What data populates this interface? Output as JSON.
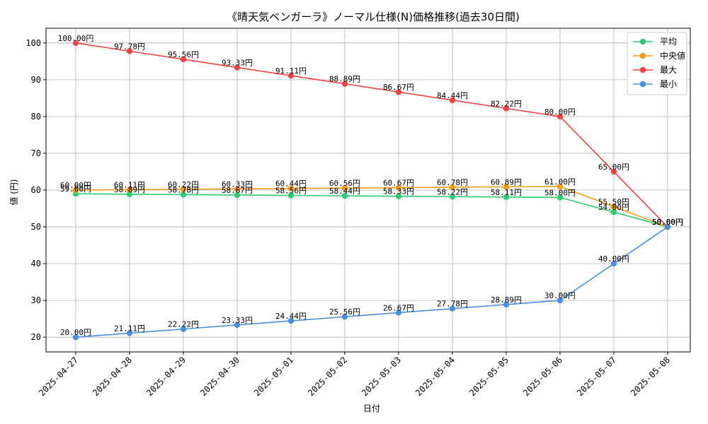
{
  "chart_data": {
    "type": "line",
    "title": "《晴天気ベンガーラ》ノーマル仕様(N)価格推移(過去30日間)",
    "xlabel": "日付",
    "ylabel": "値 (円)",
    "x": [
      "2025-04-27",
      "2025-04-28",
      "2025-04-29",
      "2025-04-30",
      "2025-05-01",
      "2025-05-02",
      "2025-05-03",
      "2025-05-04",
      "2025-05-05",
      "2025-05-06",
      "2025-05-07",
      "2025-05-08"
    ],
    "ylim": [
      16,
      104
    ],
    "yticks": [
      "20",
      "30",
      "40",
      "50",
      "60",
      "70",
      "80",
      "90",
      "100"
    ],
    "grid": true,
    "legend_position": "top-right",
    "series": [
      {
        "name": "平均",
        "color": "#2ecc71",
        "values": [
          59.0,
          58.89,
          58.78,
          58.67,
          58.56,
          58.44,
          58.33,
          58.22,
          58.11,
          58.0,
          54.0,
          50.0
        ],
        "labels": [
          "59.00円",
          "58.89円",
          "58.78円",
          "58.67円",
          "58.56円",
          "58.44円",
          "58.33円",
          "58.22円",
          "58.11円",
          "58.00円",
          "54.00円",
          "50.00円"
        ]
      },
      {
        "name": "中央値",
        "color": "#f39c12",
        "values": [
          60.0,
          60.11,
          60.22,
          60.33,
          60.44,
          60.56,
          60.67,
          60.78,
          60.89,
          61.0,
          55.5,
          50.0
        ],
        "labels": [
          "60.00円",
          "60.11円",
          "60.22円",
          "60.33円",
          "60.44円",
          "60.56円",
          "60.67円",
          "60.78円",
          "60.89円",
          "61.00円",
          "55.50円",
          "50.00円"
        ]
      },
      {
        "name": "最大",
        "color": "#ef4444",
        "values": [
          100.0,
          97.78,
          95.56,
          93.33,
          91.11,
          88.89,
          86.67,
          84.44,
          82.22,
          80.0,
          65.0,
          50.0
        ],
        "labels": [
          "100.00円",
          "97.78円",
          "95.56円",
          "93.33円",
          "91.11円",
          "88.89円",
          "86.67円",
          "84.44円",
          "82.22円",
          "80.00円",
          "65.00円",
          "50.00円"
        ]
      },
      {
        "name": "最小",
        "color": "#4a90e2",
        "values": [
          20.0,
          21.11,
          22.22,
          23.33,
          24.44,
          25.56,
          26.67,
          27.78,
          28.89,
          30.0,
          40.0,
          50.0
        ],
        "labels": [
          "20.00円",
          "21.11円",
          "22.22円",
          "23.33円",
          "24.44円",
          "25.56円",
          "26.67円",
          "27.78円",
          "28.89円",
          "30.00円",
          "40.00円",
          "50.00円"
        ]
      }
    ]
  }
}
